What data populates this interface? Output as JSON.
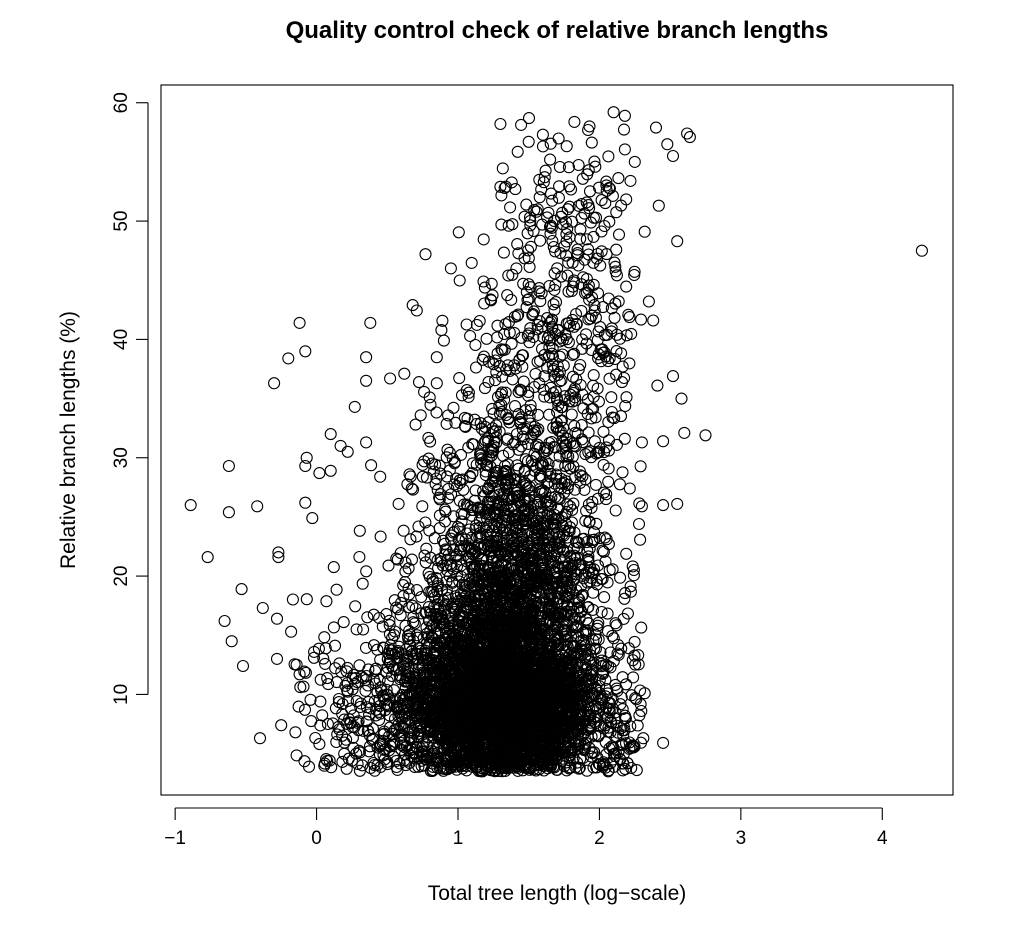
{
  "chart_data": {
    "type": "scatter",
    "title": "Quality control check of relative branch lengths",
    "xlabel": "Total tree length (log−scale)",
    "ylabel": "Relative branch lengths (%)",
    "x_ticks": [
      -1,
      0,
      1,
      2,
      3,
      4
    ],
    "x_tick_labels": [
      "−1",
      "0",
      "1",
      "2",
      "3",
      "4"
    ],
    "y_ticks": [
      10,
      20,
      30,
      40,
      50,
      60
    ],
    "y_tick_labels": [
      "10",
      "20",
      "30",
      "40",
      "50",
      "60"
    ],
    "xlim": [
      -1.1,
      4.5
    ],
    "ylim": [
      1.5,
      61.5
    ],
    "grid": false,
    "legend": "none",
    "marker": "open-circle",
    "marker_color": "#000000",
    "series": [
      {
        "points": [
          [
            4.28,
            47.5
          ],
          [
            2.75,
            31.9
          ],
          [
            2.62,
            57.4
          ],
          [
            2.64,
            57.1
          ],
          [
            2.55,
            26.1
          ],
          [
            2.58,
            35.0
          ],
          [
            2.6,
            32.1
          ],
          [
            2.52,
            36.9
          ],
          [
            2.55,
            48.3
          ],
          [
            2.45,
            26.0
          ],
          [
            2.45,
            31.4
          ],
          [
            2.45,
            5.9
          ],
          [
            2.42,
            51.3
          ],
          [
            2.4,
            57.9
          ],
          [
            2.48,
            56.5
          ],
          [
            2.52,
            55.5
          ],
          [
            2.41,
            36.1
          ],
          [
            2.38,
            41.6
          ],
          [
            2.35,
            43.2
          ],
          [
            2.32,
            49.1
          ],
          [
            2.3,
            25.9
          ],
          [
            2.28,
            24.4
          ],
          [
            2.3,
            31.3
          ],
          [
            2.25,
            55.0
          ],
          [
            2.22,
            53.4
          ],
          [
            2.1,
            59.2
          ],
          [
            2.18,
            58.9
          ],
          [
            1.92,
            57.7
          ],
          [
            1.93,
            58.0
          ],
          [
            1.6,
            57.3
          ],
          [
            1.3,
            58.2
          ],
          [
            1.5,
            56.7
          ],
          [
            1.33,
            52.8
          ],
          [
            1.3,
            52.9
          ],
          [
            2.32,
            10.1
          ],
          [
            2.31,
            6.3
          ],
          [
            2.11,
            4.8
          ],
          [
            2.1,
            4.5
          ],
          [
            -0.89,
            26.0
          ],
          [
            -0.77,
            21.6
          ],
          [
            -0.62,
            29.3
          ],
          [
            -0.62,
            25.4
          ],
          [
            -0.65,
            16.2
          ],
          [
            -0.6,
            14.5
          ],
          [
            -0.53,
            18.9
          ],
          [
            -0.52,
            12.4
          ],
          [
            -0.42,
            25.9
          ],
          [
            -0.4,
            6.3
          ],
          [
            -0.38,
            17.3
          ],
          [
            -0.3,
            36.3
          ],
          [
            -0.28,
            16.4
          ],
          [
            -0.28,
            13.0
          ],
          [
            -0.27,
            21.6
          ],
          [
            -0.27,
            22.0
          ],
          [
            -0.25,
            7.4
          ],
          [
            -0.2,
            38.4
          ],
          [
            -0.12,
            41.4
          ],
          [
            -0.08,
            39.0
          ],
          [
            -0.07,
            30.0
          ],
          [
            -0.08,
            29.3
          ],
          [
            -0.18,
            15.3
          ],
          [
            -0.15,
            6.8
          ],
          [
            -0.12,
            11.7
          ],
          [
            -0.08,
            26.2
          ],
          [
            -0.03,
            24.9
          ],
          [
            0.02,
            28.7
          ],
          [
            0.1,
            32.0
          ],
          [
            0.1,
            28.9
          ],
          [
            0.17,
            31.0
          ],
          [
            0.22,
            30.5
          ],
          [
            0.27,
            34.3
          ],
          [
            0.35,
            38.5
          ],
          [
            0.35,
            36.5
          ],
          [
            0.35,
            31.3
          ],
          [
            0.38,
            41.4
          ],
          [
            0.45,
            28.4
          ],
          [
            0.52,
            36.7
          ],
          [
            0.58,
            26.1
          ],
          [
            0.62,
            37.1
          ],
          [
            0.68,
            42.9
          ],
          [
            0.77,
            47.2
          ],
          [
            0.8,
            35.1
          ],
          [
            0.85,
            36.3
          ],
          [
            0.95,
            46.0
          ],
          [
            0.9,
            39.9
          ],
          [
            0.85,
            38.5
          ],
          [
            0.76,
            29.7
          ],
          [
            0.7,
            32.8
          ],
          [
            0.08,
            7.5
          ],
          [
            0.02,
            5.8
          ],
          [
            0.28,
            5.0
          ],
          [
            0.25,
            4.4
          ],
          [
            0.5,
            4.3
          ]
        ]
      }
    ],
    "density_clusters": [
      {
        "count": 2900,
        "cx": 1.35,
        "cy": 9.0,
        "sx": 0.3,
        "sy": 2.8,
        "ymin": 3.5
      },
      {
        "count": 1300,
        "cx": 1.35,
        "cy": 15.0,
        "sx": 0.3,
        "sy": 4.0,
        "ymin": 3.5
      },
      {
        "count": 550,
        "cx": 1.4,
        "cy": 22.0,
        "sx": 0.3,
        "sy": 3.5,
        "ymin": 3.5
      },
      {
        "count": 350,
        "cx": 1.45,
        "cy": 29.0,
        "sx": 0.35,
        "sy": 3.5,
        "ymin": 3.5
      },
      {
        "count": 300,
        "cx": 1.65,
        "cy": 38.0,
        "sx": 0.32,
        "sy": 5.0,
        "ymin": 3.5
      },
      {
        "count": 180,
        "cx": 1.8,
        "cy": 48.0,
        "sx": 0.28,
        "sy": 5.0,
        "ymin": 3.5
      },
      {
        "count": 700,
        "cx": 1.0,
        "cy": 8.0,
        "sx": 0.45,
        "sy": 3.5,
        "ymin": 3.5
      },
      {
        "count": 200,
        "cx": 0.6,
        "cy": 12.0,
        "sx": 0.35,
        "sy": 5.0,
        "ymin": 3.5
      },
      {
        "count": 120,
        "cx": 2.05,
        "cy": 9.0,
        "sx": 0.22,
        "sy": 5.0,
        "ymin": 3.5
      }
    ]
  }
}
